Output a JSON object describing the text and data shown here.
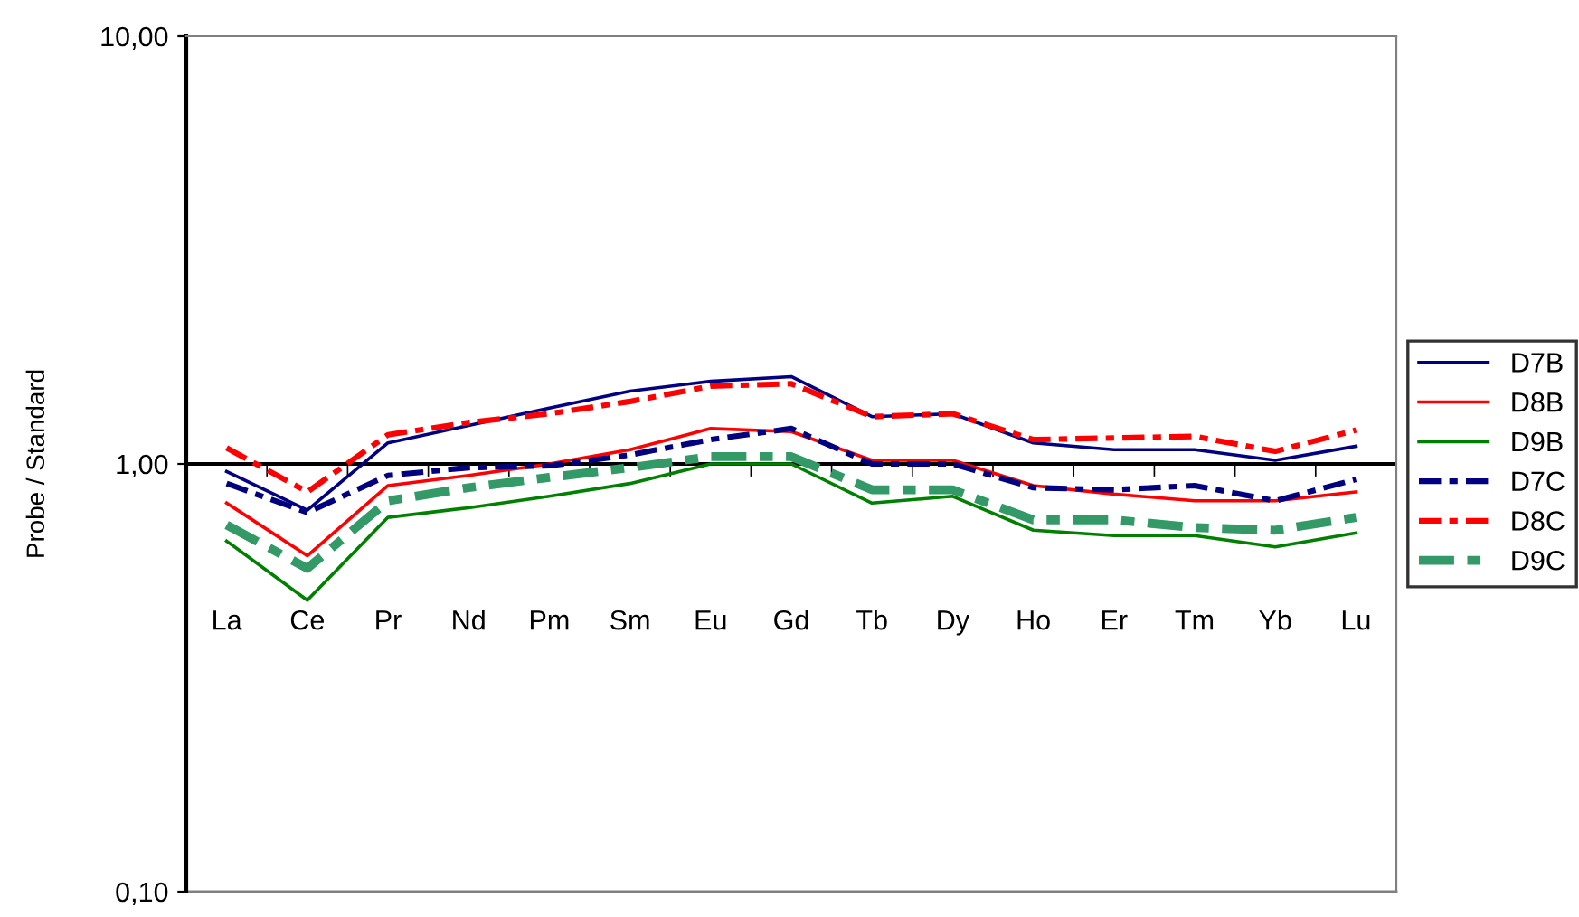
{
  "chart_data": {
    "type": "line",
    "ylabel": "Probe / Standard",
    "categories": [
      "La",
      "Ce",
      "Pr",
      "Nd",
      "Pm",
      "Sm",
      "Eu",
      "Gd",
      "Tb",
      "Dy",
      "Ho",
      "Er",
      "Tm",
      "Yb",
      "Lu"
    ],
    "log": true,
    "ylim": [
      0.1,
      10
    ],
    "yticks": [
      {
        "value": 0.1,
        "label": "0,10"
      },
      {
        "value": 1,
        "label": "1,00"
      },
      {
        "value": 10,
        "label": "10,00"
      }
    ],
    "grid": false,
    "ref_lines": [
      {
        "axis": "y",
        "value": 1,
        "color": "#000000"
      }
    ],
    "legend": "right",
    "marker": "none",
    "series": [
      {
        "name": "D7B",
        "color": "#000080",
        "line_style": "solid",
        "values": [
          0.96,
          0.78,
          1.12,
          1.23,
          1.35,
          1.48,
          1.56,
          1.6,
          1.29,
          1.31,
          1.12,
          1.08,
          1.08,
          1.02,
          1.1
        ]
      },
      {
        "name": "D8B",
        "color": "#ff0000",
        "line_style": "solid",
        "values": [
          0.81,
          0.61,
          0.89,
          0.94,
          1.0,
          1.08,
          1.21,
          1.19,
          1.02,
          1.02,
          0.89,
          0.85,
          0.82,
          0.82,
          0.86
        ]
      },
      {
        "name": "D9B",
        "color": "#008000",
        "line_style": "solid",
        "values": [
          0.66,
          0.48,
          0.75,
          0.79,
          0.84,
          0.9,
          1.0,
          1.0,
          0.81,
          0.84,
          0.7,
          0.68,
          0.68,
          0.64,
          0.69
        ]
      },
      {
        "name": "D7C",
        "color": "#000080",
        "line_style": "dashed",
        "values": [
          0.9,
          0.77,
          0.94,
          0.98,
          0.99,
          1.05,
          1.14,
          1.21,
          1.0,
          1.0,
          0.88,
          0.87,
          0.89,
          0.82,
          0.92
        ]
      },
      {
        "name": "D8C",
        "color": "#ff0000",
        "line_style": "dashed",
        "values": [
          1.09,
          0.86,
          1.17,
          1.25,
          1.31,
          1.4,
          1.52,
          1.54,
          1.29,
          1.31,
          1.14,
          1.15,
          1.16,
          1.07,
          1.2
        ]
      },
      {
        "name": "D9C",
        "color": "#339966",
        "line_style": "dashed",
        "values": [
          0.72,
          0.57,
          0.82,
          0.88,
          0.93,
          0.98,
          1.04,
          1.04,
          0.87,
          0.87,
          0.74,
          0.74,
          0.71,
          0.7,
          0.75
        ]
      }
    ]
  }
}
